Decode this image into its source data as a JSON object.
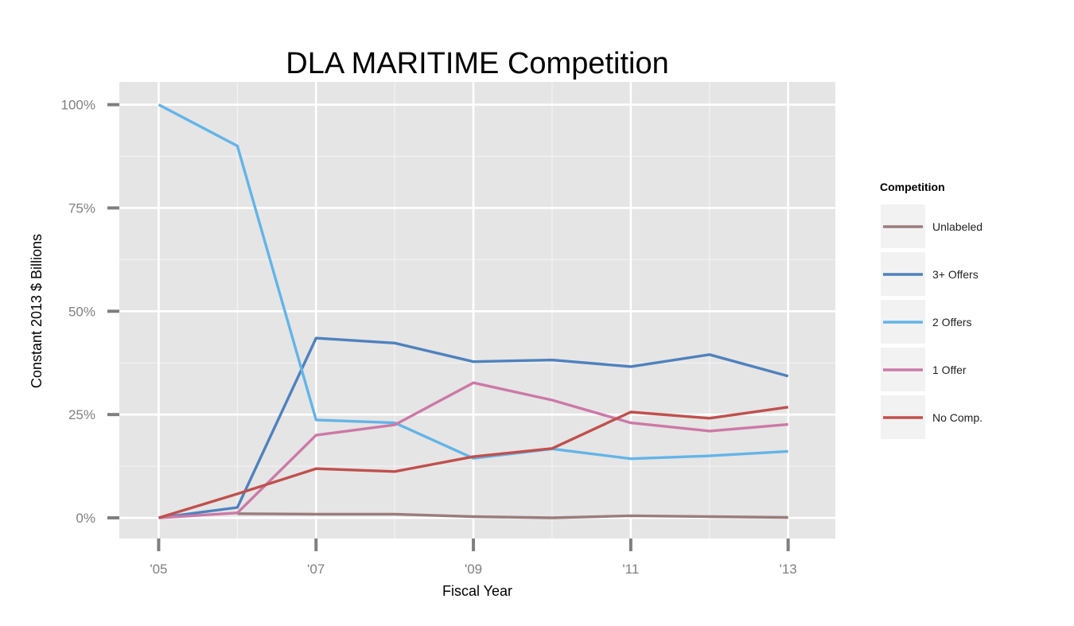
{
  "chart_data": {
    "type": "line",
    "title": "DLA MARITIME Competition",
    "xlabel": "Fiscal Year",
    "ylabel": "Constant 2013 $ Billions",
    "x": [
      2005,
      2006,
      2007,
      2008,
      2009,
      2010,
      2011,
      2012,
      2013
    ],
    "x_ticks": [
      2005,
      2007,
      2009,
      2011,
      2013
    ],
    "x_tick_labels": [
      "'05",
      "'07",
      "'09",
      "'11",
      "'13"
    ],
    "xlim": [
      2004.5,
      2013.6
    ],
    "y_ticks": [
      0,
      0.25,
      0.5,
      0.75,
      1.0
    ],
    "y_tick_labels": [
      "0%",
      "25%",
      "50%",
      "75%",
      "100%"
    ],
    "ylim": [
      -0.05,
      1.055
    ],
    "grid": true,
    "legend": {
      "title": "Competition",
      "position": "right"
    },
    "series": [
      {
        "name": "Unlabeled",
        "color": "#9b7c7c",
        "values": [
          null,
          0.01,
          0.009,
          0.009,
          0.003,
          0.0,
          0.005,
          0.003,
          0.001
        ]
      },
      {
        "name": "3+ Offers",
        "color": "#4f81bd",
        "values": [
          0.0,
          0.025,
          0.435,
          0.423,
          0.378,
          0.382,
          0.366,
          0.395,
          0.343
        ]
      },
      {
        "name": "2 Offers",
        "color": "#63b4e8",
        "values": [
          1.0,
          0.9,
          0.237,
          0.23,
          0.144,
          0.167,
          0.143,
          0.15,
          0.161
        ]
      },
      {
        "name": "1 Offer",
        "color": "#cc79a7",
        "values": [
          0.0,
          0.012,
          0.2,
          0.225,
          0.327,
          0.285,
          0.23,
          0.21,
          0.226
        ]
      },
      {
        "name": "No Comp.",
        "color": "#c0504d",
        "values": [
          0.0,
          0.058,
          0.119,
          0.112,
          0.148,
          0.168,
          0.256,
          0.241,
          0.268
        ]
      }
    ]
  }
}
